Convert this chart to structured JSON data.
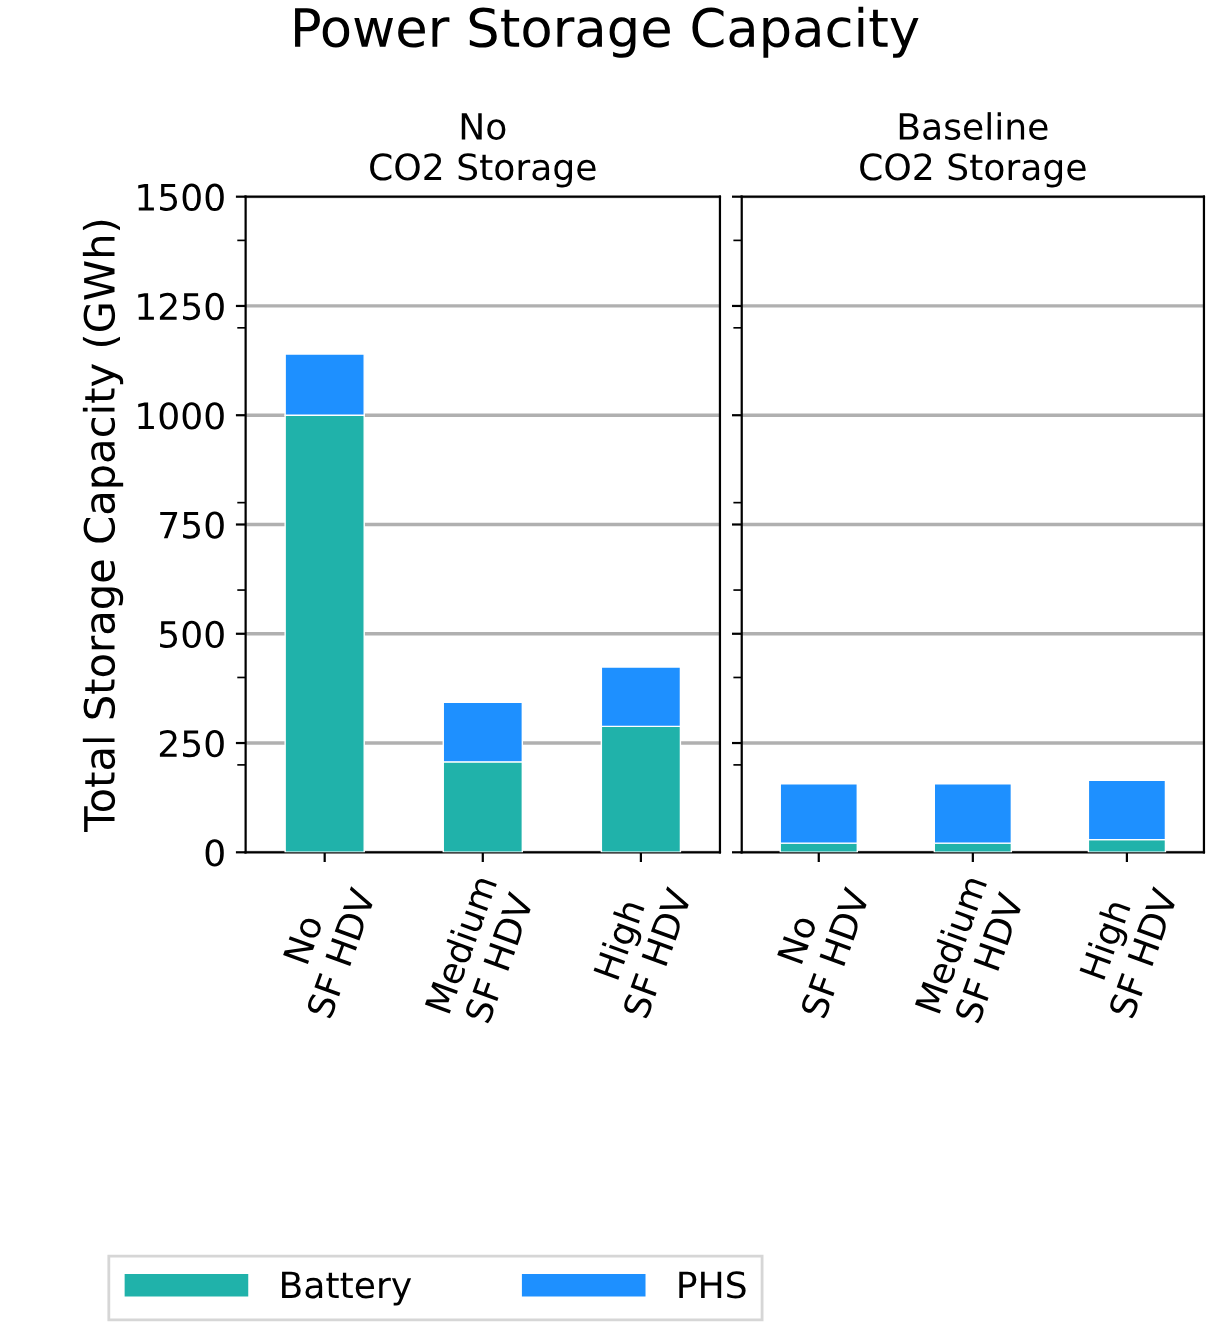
{
  "chart_data": [
    {
      "type": "bar",
      "title": "Power Storage Capacity",
      "subtitle": "No\nCO2 Storage",
      "ylabel": "Total Storage Capacity (GWh)",
      "stacked": true,
      "categories": [
        "No\nSF HDV",
        "Medium\nSF HDV",
        "High\nSF HDV"
      ],
      "series": [
        {
          "name": "Battery",
          "color": "#20b2aa",
          "values": [
            1000,
            207,
            288
          ]
        },
        {
          "name": "PHS",
          "color": "#1e90ff",
          "values": [
            140,
            136,
            136
          ]
        }
      ],
      "ylim": [
        0,
        1500
      ],
      "yticks": [
        0,
        {
          "value": 200,
          "label": null
        },
        250,
        {
          "value": 400,
          "label": null
        },
        500,
        {
          "value": 600,
          "label": null
        },
        750,
        {
          "value": 800,
          "label": null
        },
        1000,
        {
          "value": 1200,
          "label": null
        },
        1250,
        {
          "value": 1400,
          "label": null
        },
        1500
      ],
      "grid": "y",
      "legend": "bottom"
    },
    {
      "type": "bar",
      "subtitle": "Baseline\nCO2 Storage",
      "stacked": true,
      "categories": [
        "No\nSF HDV",
        "Medium\nSF HDV",
        "High\nSF HDV"
      ],
      "series": [
        {
          "color": "#20b2aa",
          "values": [
            21,
            21,
            29
          ]
        },
        {
          "color": "#1e90ff",
          "values": [
            136,
            136,
            136
          ]
        }
      ],
      "ylim": [
        0,
        1500
      ],
      "yticks": [
        0,
        {
          "value": 200,
          "label": null
        },
        250,
        {
          "value": 400,
          "label": null
        },
        500,
        {
          "value": 600,
          "label": null
        },
        750,
        {
          "value": 800,
          "label": null
        },
        1000,
        {
          "value": 1200,
          "label": null
        },
        1250,
        {
          "value": 1400,
          "label": null
        },
        1500
      ],
      "grid": "y",
      "tick_labels": "x"
    }
  ]
}
